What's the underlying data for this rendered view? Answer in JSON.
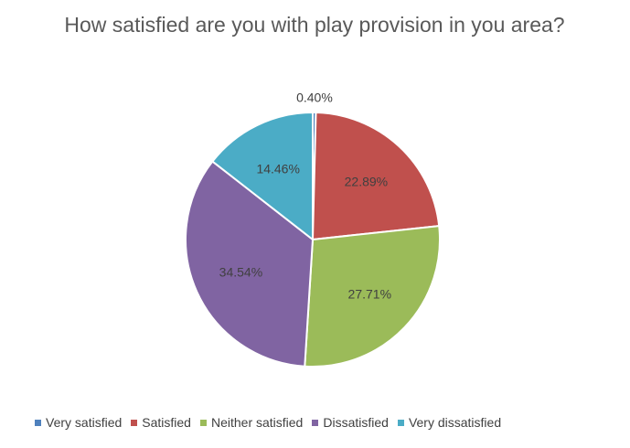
{
  "chart_data": {
    "type": "pie",
    "title": "How satisfied are you with play provision in you area?",
    "categories": [
      "Very satisfied",
      "Satisfied",
      "Neither satisfied",
      "Dissatisfied",
      "Very dissatisfied"
    ],
    "values": [
      0.4,
      22.89,
      27.71,
      34.54,
      14.46
    ],
    "labels": [
      "0.40%",
      "22.89%",
      "27.71%",
      "34.54%",
      "14.46%"
    ],
    "colors": [
      "#4f81bd",
      "#c0504d",
      "#9bbb59",
      "#8064a2",
      "#4bacc6"
    ],
    "legend_position": "bottom",
    "start_angle": "top (12 o'clock), clockwise"
  }
}
